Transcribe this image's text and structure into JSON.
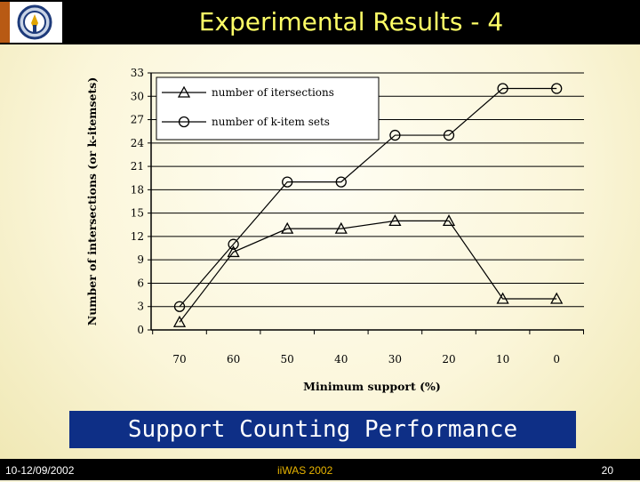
{
  "slide": {
    "title": "Experimental Results - 4",
    "caption": "Support Counting Performance",
    "footer_left": "10-12/09/2002",
    "footer_center": "iiWAS 2002",
    "footer_right": "20",
    "logo": "university-logo"
  },
  "colors": {
    "title": "#ffff66",
    "caption_bg": "#0e2f86",
    "footer_center": "#e8b400",
    "logo_strip": "#b85a14"
  },
  "chart_data": {
    "type": "line",
    "categories": [
      "70",
      "60",
      "50",
      "40",
      "30",
      "20",
      "10",
      "0"
    ],
    "series": [
      {
        "name": "number of itersections",
        "marker": "triangle",
        "values": [
          1,
          10,
          13,
          13,
          14,
          14,
          4,
          4
        ]
      },
      {
        "name": "number of k-item sets",
        "marker": "circle",
        "values": [
          3,
          11,
          19,
          19,
          25,
          25,
          31,
          31
        ]
      }
    ],
    "title": "",
    "xlabel": "Minimum support (%)",
    "ylabel": "Number of intersections (or k-itemsets)",
    "ylim": [
      0,
      33
    ],
    "yticks": [
      0,
      3,
      6,
      9,
      12,
      15,
      18,
      21,
      24,
      27,
      30,
      33
    ],
    "grid": true,
    "legend": "top-left"
  }
}
